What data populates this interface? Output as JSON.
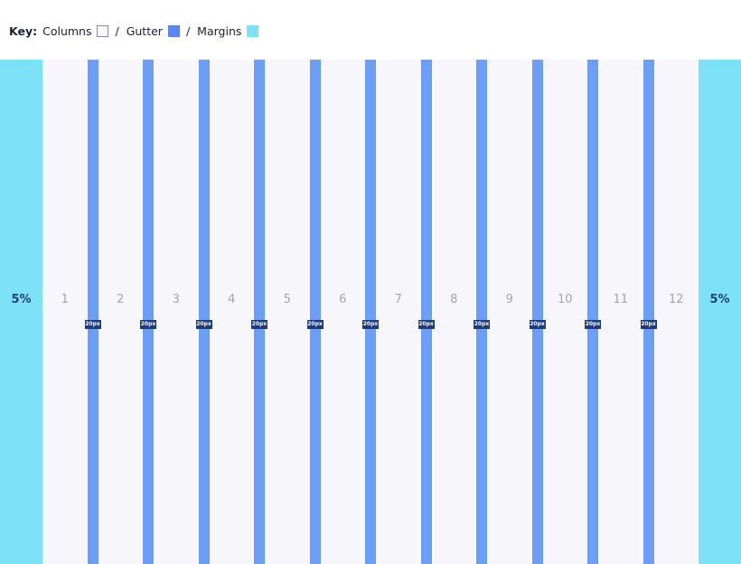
{
  "key": {
    "label": "Key:",
    "columns": "Columns",
    "gutter": "Gutter",
    "margins": "Margins",
    "separator": "/"
  },
  "colors": {
    "columns": "#f6f6fb",
    "gutter": "#6d9ef6",
    "margins": "#7de1f7",
    "badge": "#1e3a7a"
  },
  "margins": {
    "left": "5%",
    "right": "5%"
  },
  "columns": [
    "1",
    "2",
    "3",
    "4",
    "5",
    "6",
    "7",
    "8",
    "9",
    "10",
    "11",
    "12"
  ],
  "gutter_label": "20px"
}
